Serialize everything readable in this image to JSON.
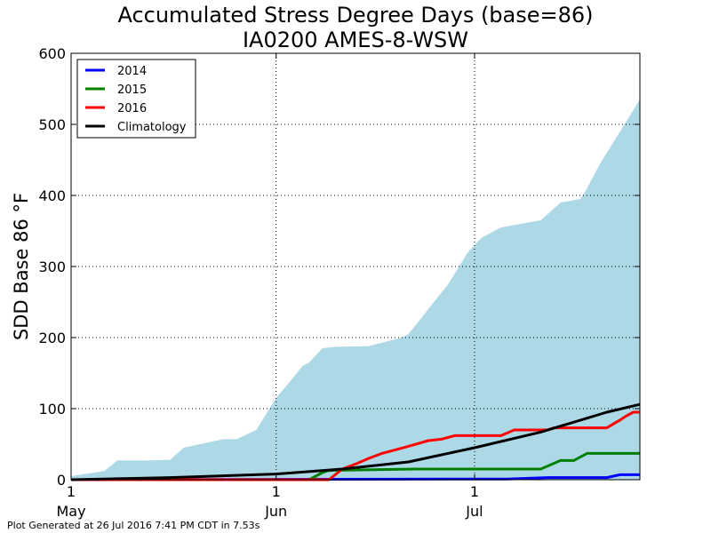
{
  "chart_data": {
    "type": "line",
    "title": "Accumulated Stress Degree Days (base=86)",
    "subtitle": "IA0200 AMES-8-WSW",
    "ylabel": "SDD Base 86 °F",
    "xlabel": "",
    "x_domain": [
      "2016-05-01",
      "2016-07-26"
    ],
    "ylim": [
      0,
      600
    ],
    "yticks": [
      0,
      100,
      200,
      300,
      400,
      500,
      600
    ],
    "xticks": [
      {
        "date": "2016-05-01",
        "day": "1",
        "month": "May"
      },
      {
        "date": "2016-06-01",
        "day": "1",
        "month": "Jun"
      },
      {
        "date": "2016-07-01",
        "day": "1",
        "month": "Jul"
      }
    ],
    "grid": true,
    "legend_placement": "top-left",
    "range_band": {
      "color": "#add8e6",
      "x": [
        "2016-05-01",
        "2016-05-03",
        "2016-05-06",
        "2016-05-08",
        "2016-05-12",
        "2016-05-16",
        "2016-05-18",
        "2016-05-24",
        "2016-05-26",
        "2016-05-29",
        "2016-06-01",
        "2016-06-03",
        "2016-06-05",
        "2016-06-06",
        "2016-06-08",
        "2016-06-10",
        "2016-06-15",
        "2016-06-20",
        "2016-06-21",
        "2016-06-23",
        "2016-06-24",
        "2016-06-27",
        "2016-06-30",
        "2016-07-02",
        "2016-07-05",
        "2016-07-11",
        "2016-07-14",
        "2016-07-17",
        "2016-07-18",
        "2016-07-20",
        "2016-07-26"
      ],
      "y": [
        5,
        8,
        12,
        27,
        27,
        28,
        45,
        57,
        57,
        70,
        115,
        137,
        160,
        165,
        185,
        187,
        188,
        200,
        205,
        228,
        240,
        275,
        320,
        340,
        355,
        365,
        390,
        395,
        410,
        445,
        535
      ]
    },
    "series": [
      {
        "name": "2014",
        "color": "#0000ff",
        "x": [
          "2016-05-01",
          "2016-07-06",
          "2016-07-12",
          "2016-07-21",
          "2016-07-23",
          "2016-07-26"
        ],
        "y": [
          0,
          1,
          3,
          3,
          7,
          7
        ]
      },
      {
        "name": "2015",
        "color": "#008000",
        "x": [
          "2016-05-01",
          "2016-06-06",
          "2016-06-08",
          "2016-06-09",
          "2016-06-22",
          "2016-07-11",
          "2016-07-14",
          "2016-07-16",
          "2016-07-18",
          "2016-07-26"
        ],
        "y": [
          0,
          0,
          10,
          13,
          15,
          15,
          27,
          27,
          37,
          37
        ]
      },
      {
        "name": "2016",
        "color": "#ff0000",
        "x": [
          "2016-05-01",
          "2016-06-09",
          "2016-06-11",
          "2016-06-13",
          "2016-06-15",
          "2016-06-17",
          "2016-06-19",
          "2016-06-21",
          "2016-06-24",
          "2016-06-26",
          "2016-06-28",
          "2016-07-01",
          "2016-07-05",
          "2016-07-07",
          "2016-07-12",
          "2016-07-13",
          "2016-07-21",
          "2016-07-23",
          "2016-07-24",
          "2016-07-25",
          "2016-07-26"
        ],
        "y": [
          0,
          0,
          15,
          22,
          30,
          37,
          42,
          47,
          55,
          57,
          62,
          62,
          62,
          70,
          70,
          73,
          73,
          84,
          90,
          95,
          95
        ]
      },
      {
        "name": "Climatology",
        "color": "#000000",
        "x": [
          "2016-05-01",
          "2016-05-16",
          "2016-06-01",
          "2016-06-11",
          "2016-06-21",
          "2016-07-01",
          "2016-07-11",
          "2016-07-21",
          "2016-07-26"
        ],
        "y": [
          0,
          3,
          8,
          15,
          25,
          45,
          67,
          95,
          106
        ]
      }
    ],
    "footer": "Plot Generated at 26 Jul 2016 7:41 PM CDT in 7.53s"
  }
}
